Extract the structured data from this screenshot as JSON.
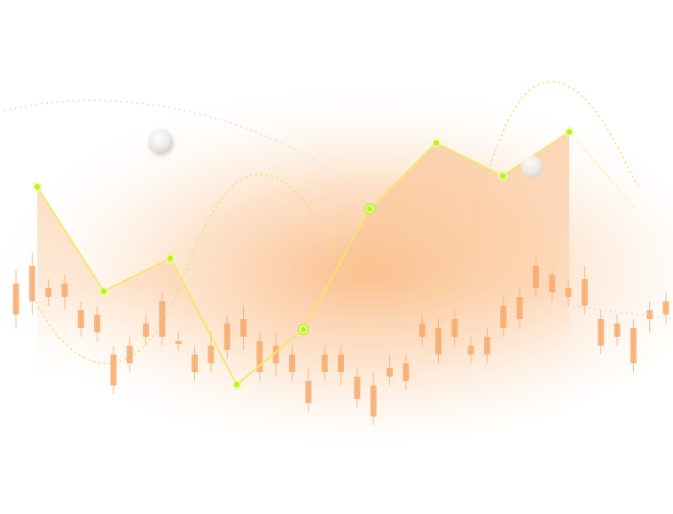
{
  "chart_data": {
    "type": "line",
    "grid": false,
    "legend": "none",
    "title": "",
    "xlabel": "",
    "ylabel": "",
    "colors": {
      "line": "#f4e66a",
      "point_fill": "#b9f227",
      "point_glow": "#e7ff9a",
      "area_fill": "#f9a866",
      "candle": "#f6a768",
      "curve_dashed": "#e9e37d",
      "curve_dotted_grey": "#e7e7e7",
      "orb": "#d8d8d8"
    },
    "ylim": [
      0,
      100
    ],
    "line_series": {
      "x": [
        0,
        1,
        2,
        3,
        4,
        5,
        6,
        7,
        8,
        9
      ],
      "y": [
        66,
        47,
        53,
        30,
        40,
        62,
        74,
        68,
        76,
        62
      ]
    },
    "highlighted_points": [
      4,
      5
    ],
    "candles": {
      "x": [
        0,
        1,
        2,
        3,
        4,
        5,
        6,
        7,
        8,
        9,
        10,
        11,
        12,
        13,
        14,
        15,
        16,
        17,
        18,
        19,
        20,
        21,
        22,
        23,
        24,
        25,
        26,
        27,
        28,
        29,
        30,
        31,
        32,
        33,
        34,
        35,
        36,
        37,
        38,
        39,
        40
      ],
      "open": [
        56,
        60,
        55,
        56,
        50,
        49,
        40,
        42,
        44,
        44,
        43,
        36,
        42,
        41,
        44,
        43,
        38,
        40,
        29,
        40,
        40,
        35,
        33,
        35,
        38,
        44,
        46,
        44,
        42,
        40,
        51,
        53,
        60,
        54,
        53,
        57,
        48,
        44,
        46,
        50,
        49
      ],
      "close": [
        49,
        52,
        53,
        53,
        46,
        45,
        33,
        38,
        47,
        52,
        43,
        40,
        38,
        47,
        48,
        36,
        42,
        36,
        34,
        36,
        36,
        30,
        26,
        37,
        34,
        47,
        40,
        48,
        40,
        44,
        46,
        48,
        55,
        58,
        55,
        51,
        42,
        47,
        38,
        48,
        52
      ],
      "high": [
        59,
        63,
        57,
        58,
        52,
        51,
        42,
        44,
        49,
        54,
        45,
        42,
        45,
        49,
        51,
        45,
        45,
        42,
        37,
        42,
        42,
        37,
        36,
        40,
        40,
        49,
        48,
        50,
        44,
        46,
        53,
        55,
        62,
        59,
        57,
        60,
        50,
        49,
        48,
        52,
        54
      ],
      "low": [
        46,
        49,
        51,
        50,
        44,
        43,
        31,
        36,
        42,
        42,
        41,
        34,
        36,
        39,
        41,
        34,
        35,
        34,
        27,
        34,
        33,
        28,
        24,
        33,
        32,
        42,
        38,
        42,
        38,
        38,
        44,
        46,
        53,
        52,
        51,
        49,
        40,
        42,
        36,
        45,
        47
      ]
    }
  }
}
